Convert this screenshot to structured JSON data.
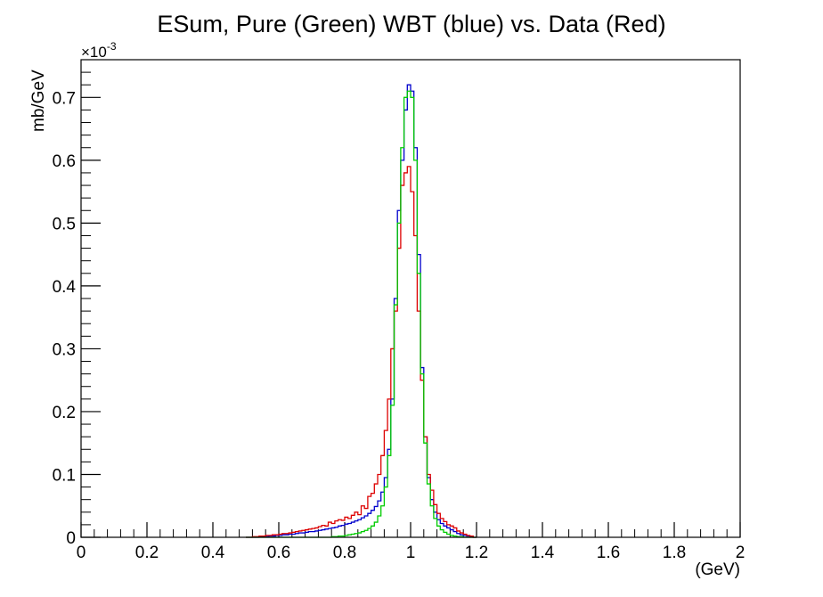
{
  "chart_data": {
    "type": "line",
    "step": true,
    "title": "ESum, Pure (Green) WBT (blue) vs. Data (Red)",
    "xlabel": "(GeV)",
    "ylabel": "mb/GeV",
    "y_multiplier": "×10",
    "y_multiplier_exponent": "-3",
    "xlim": [
      0,
      2
    ],
    "ylim": [
      0,
      0.76
    ],
    "x_ticks": [
      0,
      0.2,
      0.4,
      0.6,
      0.8,
      1,
      1.2,
      1.4,
      1.6,
      1.8,
      2
    ],
    "x_tick_labels": [
      "0",
      "0.2",
      "0.4",
      "0.6",
      "0.8",
      "1",
      "1.2",
      "1.4",
      "1.6",
      "1.8",
      "2"
    ],
    "y_ticks": [
      0,
      0.1,
      0.2,
      0.3,
      0.4,
      0.5,
      0.6,
      0.7
    ],
    "y_tick_labels": [
      "0",
      "0.1",
      "0.2",
      "0.3",
      "0.4",
      "0.5",
      "0.6",
      "0.7"
    ],
    "bin_width": 0.01,
    "series": [
      {
        "color": "#0000cc",
        "x": [
          0.5,
          0.51,
          0.52,
          0.53,
          0.54,
          0.55,
          0.56,
          0.57,
          0.58,
          0.59,
          0.6,
          0.61,
          0.62,
          0.63,
          0.64,
          0.65,
          0.66,
          0.67,
          0.68,
          0.69,
          0.7,
          0.71,
          0.72,
          0.73,
          0.74,
          0.75,
          0.76,
          0.77,
          0.78,
          0.79,
          0.8,
          0.81,
          0.82,
          0.83,
          0.84,
          0.85,
          0.86,
          0.87,
          0.88,
          0.89,
          0.9,
          0.91,
          0.92,
          0.93,
          0.94,
          0.95,
          0.96,
          0.97,
          0.98,
          0.99,
          1.0,
          1.01,
          1.02,
          1.03,
          1.04,
          1.05,
          1.06,
          1.07,
          1.08,
          1.09,
          1.1,
          1.11,
          1.12,
          1.13,
          1.14,
          1.15,
          1.16,
          1.17,
          1.18,
          1.19
        ],
        "values": [
          0,
          0,
          0,
          0,
          0.001,
          0.001,
          0.001,
          0.002,
          0.002,
          0.003,
          0.003,
          0.004,
          0.004,
          0.005,
          0.005,
          0.006,
          0.007,
          0.007,
          0.008,
          0.009,
          0.009,
          0.01,
          0.011,
          0.012,
          0.013,
          0.014,
          0.015,
          0.016,
          0.018,
          0.019,
          0.021,
          0.022,
          0.024,
          0.026,
          0.028,
          0.031,
          0.034,
          0.038,
          0.043,
          0.049,
          0.058,
          0.072,
          0.095,
          0.14,
          0.22,
          0.38,
          0.52,
          0.6,
          0.68,
          0.72,
          0.71,
          0.62,
          0.45,
          0.27,
          0.16,
          0.095,
          0.06,
          0.04,
          0.028,
          0.022,
          0.018,
          0.015,
          0.012,
          0.009,
          0.006,
          0.004,
          0.003,
          0.002,
          0.001,
          0
        ]
      },
      {
        "color": "#dd0000",
        "x": [
          0.5,
          0.51,
          0.52,
          0.53,
          0.54,
          0.55,
          0.56,
          0.57,
          0.58,
          0.59,
          0.6,
          0.61,
          0.62,
          0.63,
          0.64,
          0.65,
          0.66,
          0.67,
          0.68,
          0.69,
          0.7,
          0.71,
          0.72,
          0.73,
          0.74,
          0.75,
          0.76,
          0.77,
          0.78,
          0.79,
          0.8,
          0.81,
          0.82,
          0.83,
          0.84,
          0.85,
          0.86,
          0.87,
          0.88,
          0.89,
          0.9,
          0.91,
          0.92,
          0.93,
          0.94,
          0.95,
          0.96,
          0.97,
          0.98,
          0.99,
          1.0,
          1.01,
          1.02,
          1.03,
          1.04,
          1.05,
          1.06,
          1.07,
          1.08,
          1.09,
          1.1,
          1.11,
          1.12,
          1.13,
          1.14,
          1.15,
          1.16,
          1.17,
          1.18,
          1.19
        ],
        "values": [
          0,
          0,
          0.001,
          0.001,
          0.002,
          0.002,
          0.003,
          0.003,
          0.004,
          0.004,
          0.005,
          0.006,
          0.006,
          0.007,
          0.008,
          0.009,
          0.01,
          0.011,
          0.012,
          0.013,
          0.014,
          0.015,
          0.017,
          0.019,
          0.018,
          0.024,
          0.022,
          0.026,
          0.028,
          0.027,
          0.032,
          0.03,
          0.035,
          0.04,
          0.036,
          0.05,
          0.046,
          0.065,
          0.07,
          0.085,
          0.1,
          0.13,
          0.17,
          0.22,
          0.3,
          0.36,
          0.46,
          0.56,
          0.58,
          0.59,
          0.55,
          0.48,
          0.36,
          0.25,
          0.16,
          0.1,
          0.075,
          0.052,
          0.038,
          0.03,
          0.025,
          0.02,
          0.018,
          0.015,
          0.01,
          0.007,
          0.005,
          0.003,
          0.002,
          0
        ]
      },
      {
        "color": "#00cc00",
        "x": [
          0.5,
          0.51,
          0.52,
          0.53,
          0.54,
          0.55,
          0.56,
          0.57,
          0.58,
          0.59,
          0.6,
          0.61,
          0.62,
          0.63,
          0.64,
          0.65,
          0.66,
          0.67,
          0.68,
          0.69,
          0.7,
          0.71,
          0.72,
          0.73,
          0.74,
          0.75,
          0.76,
          0.77,
          0.78,
          0.79,
          0.8,
          0.81,
          0.82,
          0.83,
          0.84,
          0.85,
          0.86,
          0.87,
          0.88,
          0.89,
          0.9,
          0.91,
          0.92,
          0.93,
          0.94,
          0.95,
          0.96,
          0.97,
          0.98,
          0.99,
          1.0,
          1.01,
          1.02,
          1.03,
          1.04,
          1.05,
          1.06,
          1.07,
          1.08,
          1.09,
          1.1,
          1.11,
          1.12,
          1.13,
          1.14,
          1.15,
          1.16,
          1.17,
          1.18,
          1.19
        ],
        "values": [
          0,
          0,
          0,
          0,
          0,
          0,
          0,
          0,
          0,
          0,
          0,
          0,
          0,
          0,
          0,
          0,
          0,
          0,
          0,
          0,
          0,
          0,
          0,
          0,
          0,
          0,
          0.001,
          0.001,
          0.002,
          0.002,
          0.003,
          0.004,
          0.005,
          0.006,
          0.007,
          0.009,
          0.011,
          0.014,
          0.018,
          0.024,
          0.034,
          0.05,
          0.08,
          0.13,
          0.21,
          0.37,
          0.5,
          0.62,
          0.7,
          0.71,
          0.7,
          0.6,
          0.42,
          0.26,
          0.15,
          0.085,
          0.05,
          0.03,
          0.018,
          0.012,
          0.008,
          0.005,
          0.003,
          0.002,
          0.001,
          0.001,
          0,
          0,
          0,
          0
        ]
      }
    ]
  }
}
